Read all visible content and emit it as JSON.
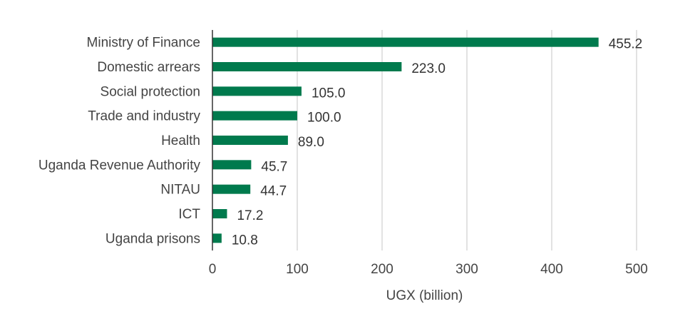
{
  "chart_data": {
    "type": "bar",
    "orientation": "horizontal",
    "title": "",
    "xlabel": "UGX (billion)",
    "ylabel": "",
    "categories": [
      "Ministry of Finance",
      "Domestic arrears",
      "Social protection",
      "Trade and industry",
      "Health",
      "Uganda Revenue Authority",
      "NITAU",
      "ICT",
      "Uganda prisons"
    ],
    "values": [
      455.2,
      223.0,
      105.0,
      100.0,
      89.0,
      45.7,
      44.7,
      17.2,
      10.8
    ],
    "value_labels": [
      "455.2",
      "223.0",
      "105.0",
      "100.0",
      "89.0",
      "45.7",
      "44.7",
      "17.2",
      "10.8"
    ],
    "xlim": [
      0,
      500
    ],
    "xticks": [
      0,
      100,
      200,
      300,
      400,
      500
    ],
    "grid": "vertical",
    "legend": "none",
    "colors": {
      "bar": "#007a4d",
      "grid": "#d9d9d9",
      "axis": "#333333",
      "text": "#444444"
    }
  }
}
